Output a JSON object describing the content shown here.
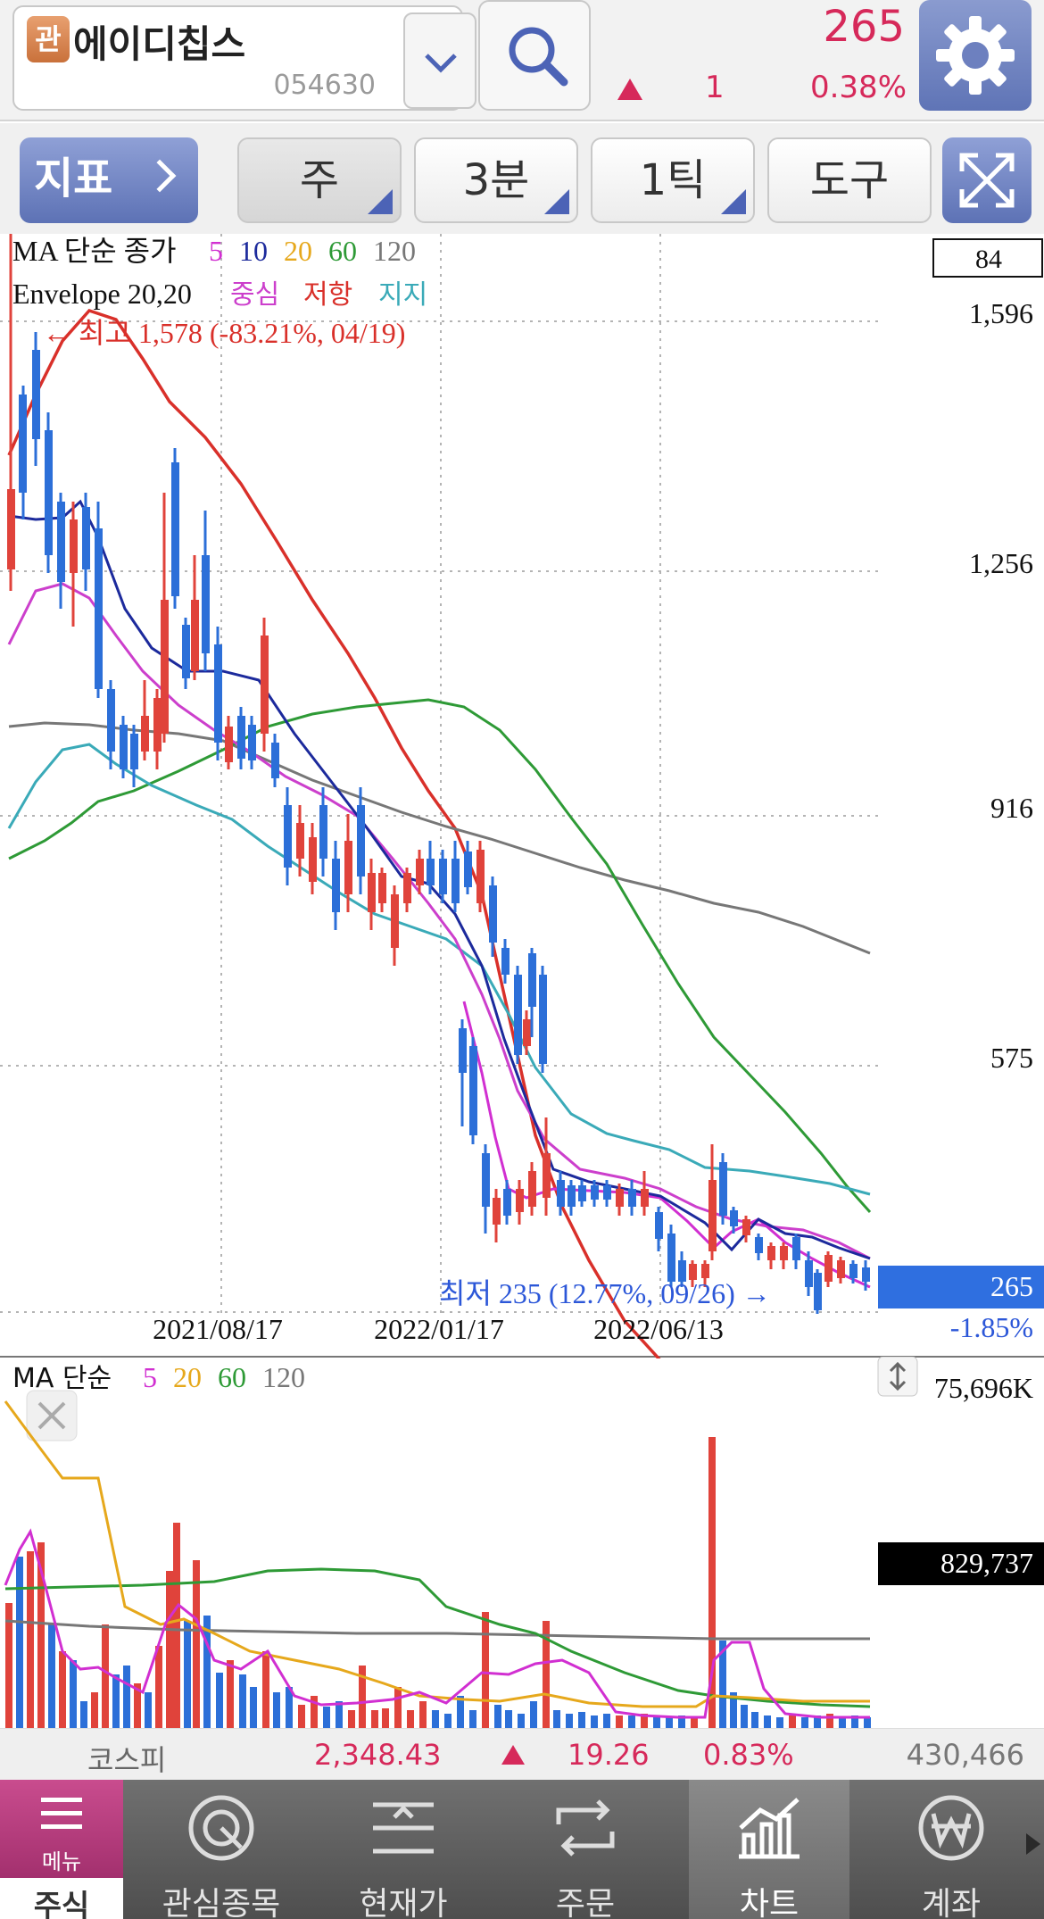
{
  "header": {
    "badge": "관",
    "stock_name": "에이디칩스",
    "stock_code": "054630",
    "price": "265",
    "change_abs": "1",
    "change_pct": "0.38%",
    "direction": "up"
  },
  "toolbar": {
    "indicator_label": "지표",
    "period_label": "주",
    "interval_label": "3분",
    "tick_label": "1틱",
    "tools_label": "도구"
  },
  "main_chart": {
    "legend_ma_prefix": "MA 단순 종가",
    "ma_periods": [
      {
        "label": "5",
        "color": "#d12fd1"
      },
      {
        "label": "10",
        "color": "#1c2a9c"
      },
      {
        "label": "20",
        "color": "#e6a81c"
      },
      {
        "label": "60",
        "color": "#2e9a36"
      },
      {
        "label": "120",
        "color": "#777777"
      }
    ],
    "legend_env_prefix": "Envelope 20,20",
    "env_center": "중심",
    "env_resist": "저항",
    "env_support": "지지",
    "env_colors": {
      "center": "#cc3fcc",
      "resist": "#d9302a",
      "support": "#3aaab8"
    },
    "top_value_box": "84",
    "y_labels": [
      "1,596",
      "1,256",
      "916",
      "575"
    ],
    "x_labels": [
      "2021/08/17",
      "2022/01/17",
      "2022/06/13"
    ],
    "high_annotation": "← 최고 1,578 (-83.21%, 04/19)",
    "low_annotation": "최저 235 (12.77%, 09/26) →",
    "current_price_box": "265",
    "current_change_pct": "-1.85%"
  },
  "chart_data": {
    "type": "candlestick",
    "series": [
      {
        "name": "5",
        "color": "#d12fd1"
      },
      {
        "name": "10",
        "color": "#1c2a9c"
      },
      {
        "name": "60",
        "color": "#2e9a36"
      },
      {
        "name": "120",
        "color": "#777777"
      },
      {
        "name": "중심",
        "color": "#cc3fcc"
      },
      {
        "name": "저항",
        "color": "#d9302a"
      },
      {
        "name": "지지",
        "color": "#3aaab8"
      }
    ],
    "y_ticks": [
      1596,
      1256,
      916,
      575
    ],
    "x_ticks": [
      "2021/08/17",
      "2022/01/17",
      "2022/06/13"
    ],
    "high": 1578,
    "low": 235,
    "last": 265
  },
  "volume_chart": {
    "legend_prefix": "MA 단순",
    "ma_periods": [
      {
        "label": "5",
        "color": "#d12fd1"
      },
      {
        "label": "20",
        "color": "#e6a81c"
      },
      {
        "label": "60",
        "color": "#2e9a36"
      },
      {
        "label": "120",
        "color": "#777777"
      }
    ],
    "top_label": "75,696K",
    "current_volume": "829,737"
  },
  "index_bar": {
    "name": "코스피",
    "value": "2,348.43",
    "change": "19.26",
    "pct": "0.83%",
    "volume": "430,466"
  },
  "bottom_nav": {
    "menu_label": "메뉴",
    "stock_label": "주식",
    "items": [
      {
        "label": "관심종목",
        "icon": "watchlist-icon"
      },
      {
        "label": "현재가",
        "icon": "current-price-icon"
      },
      {
        "label": "주문",
        "icon": "order-icon"
      },
      {
        "label": "차트",
        "icon": "chart-icon"
      },
      {
        "label": "계좌",
        "icon": "won-icon"
      }
    ]
  }
}
